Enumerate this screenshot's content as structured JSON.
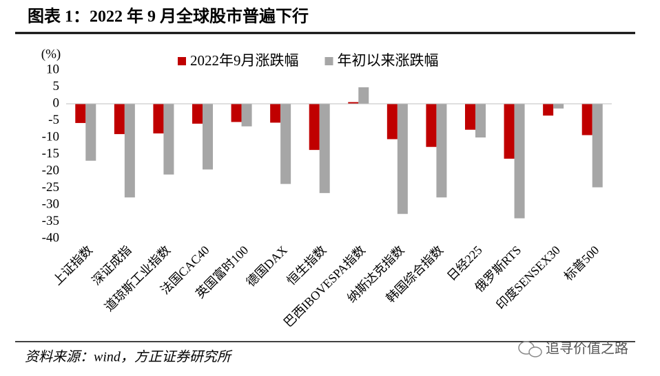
{
  "title": "图表 1：2022 年 9 月全球股市普遍下行",
  "source": "资料来源：wind，方正证券研究所",
  "watermark": "追寻价值之路",
  "chart_data": {
    "type": "bar",
    "y_label": "(%)",
    "categories": [
      "上证指数",
      "深证成指",
      "道琼斯工业指数",
      "法国CAC40",
      "英国富时100",
      "德国DAX",
      "恒生指数",
      "巴西IBOVESPA指数",
      "纳斯达克指数",
      "韩国综合指数",
      "日经225",
      "俄罗斯RTS",
      "印度SENSEX30",
      "标普500"
    ],
    "series": [
      {
        "name": "2022年9月涨跌幅",
        "color": "#c00000",
        "values": [
          -5.7,
          -9.0,
          -8.8,
          -5.9,
          -5.4,
          -5.6,
          -13.7,
          0.5,
          -10.5,
          -12.8,
          -7.7,
          -16.3,
          -3.5,
          -9.3
        ]
      },
      {
        "name": "年初以来涨跌幅",
        "color": "#a6a6a6",
        "values": [
          -16.9,
          -27.8,
          -21.0,
          -19.5,
          -6.7,
          -23.8,
          -26.5,
          4.9,
          -32.7,
          -27.8,
          -10.0,
          -34.0,
          -1.4,
          -24.8
        ]
      }
    ],
    "ylim": [
      -40,
      10
    ],
    "yticks": [
      10,
      5,
      0,
      -5,
      -10,
      -15,
      -20,
      -25,
      -30,
      -35,
      -40
    ],
    "legend": "top",
    "grid": false
  }
}
